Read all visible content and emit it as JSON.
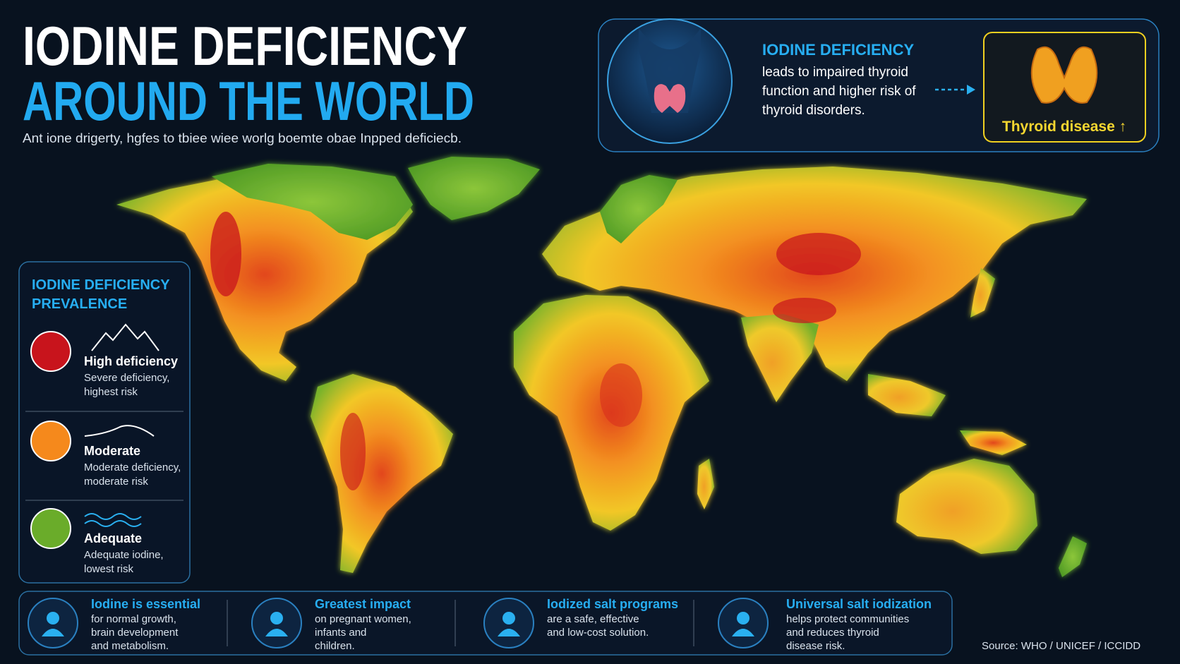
{
  "header": {
    "title_line1": "IODINE DEFICIENCY",
    "title_line2": "AROUND THE WORLD",
    "subtitle": "Ant ione drigerty, hgfes to tbiee wiee worlg boemte obae Inpped deficiecb."
  },
  "callout": {
    "heading": "IODINE DEFICIENCY",
    "lines": [
      "leads to impaired thyroid",
      "function and higher risk of",
      "thyroid disorders."
    ],
    "badge": "Thyroid disease ↑"
  },
  "legend": {
    "title_lines": [
      "IODINE DEFICIENCY",
      "PREVALENCE"
    ],
    "items": [
      {
        "label": "High deficiency",
        "desc_lines": [
          "Severe deficiency,",
          "highest risk"
        ],
        "color": "#c8141c"
      },
      {
        "label": "Moderate",
        "desc_lines": [
          "Moderate deficiency,",
          "moderate risk"
        ],
        "color": "#f5891c"
      },
      {
        "label": "Adequate",
        "desc_lines": [
          "Adequate iodine,",
          "lowest risk"
        ],
        "color": "#6aac2a"
      }
    ]
  },
  "facts": [
    {
      "title": "Iodine is essential",
      "lines": [
        "for normal growth,",
        "brain development",
        "and metabolism."
      ]
    },
    {
      "title": "Greatest impact",
      "lines": [
        "on pregnant women,",
        "infants and",
        "children."
      ]
    },
    {
      "title": "Iodized salt programs",
      "lines": [
        "are a safe, effective",
        "and low-cost solution."
      ]
    },
    {
      "title": "Universal salt iodization",
      "lines": [
        "helps protect communities",
        "and reduces thyroid",
        "disease risk."
      ]
    }
  ],
  "source": "Source: WHO / UNICEF / ICCIDD"
}
